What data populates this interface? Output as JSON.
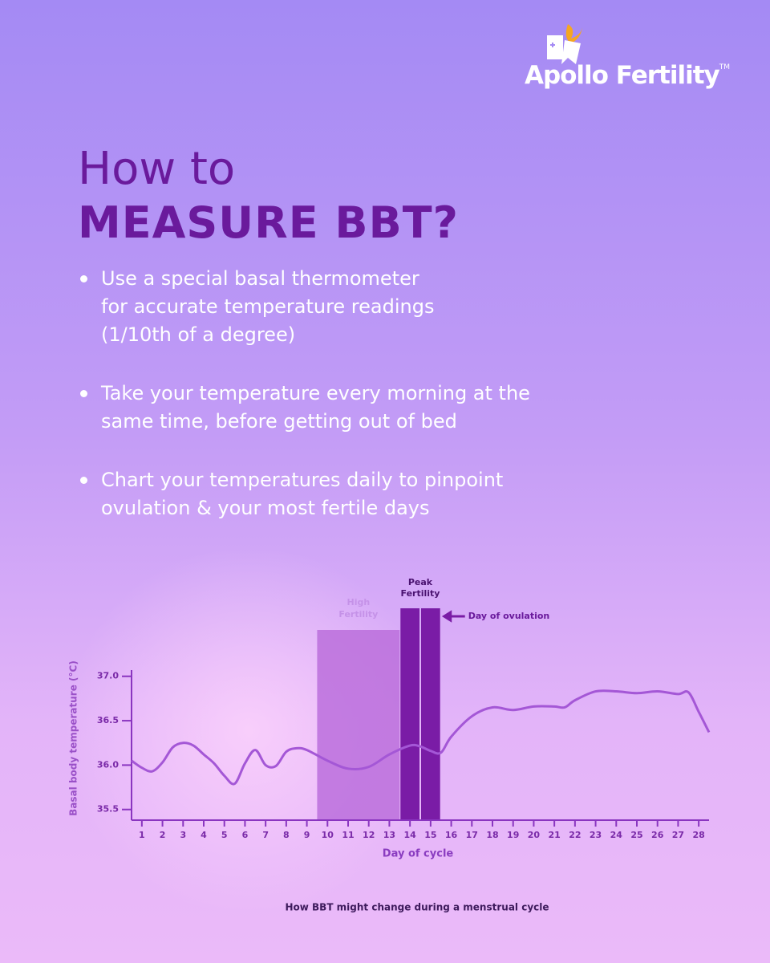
{
  "logo": {
    "name": "Apollo Fertility",
    "tm": "TM"
  },
  "header": {
    "title_line1": "How to",
    "title_line2": "MEASURE BBT?"
  },
  "bullets": [
    [
      "Use a special basal thermometer",
      "for accurate temperature readings",
      "(1/10th of a degree)"
    ],
    [
      "Take your temperature every morning at the",
      "same time, before getting out of bed"
    ],
    [
      "Chart your temperatures daily to pinpoint",
      "ovulation & your most fertile days"
    ]
  ],
  "chart_data": {
    "type": "line",
    "xlabel": "Day of cycle",
    "ylabel": "Basal body temperature (°C)",
    "caption": "How BBT might change during a menstrual cycle",
    "x": [
      0.5,
      1,
      1.5,
      2,
      2.5,
      3,
      3.5,
      4,
      4.5,
      5,
      5.5,
      6,
      6.5,
      7,
      7.5,
      8,
      8.5,
      9,
      10,
      11,
      12,
      13,
      14,
      14.5,
      15,
      15.5,
      16,
      17,
      18,
      19,
      20,
      21,
      21.5,
      22,
      23,
      24,
      25,
      26,
      27,
      27.5,
      28,
      28.5
    ],
    "series": [
      {
        "color": "#a457d6",
        "values": [
          36.05,
          35.97,
          35.93,
          36.03,
          36.2,
          36.25,
          36.22,
          36.12,
          36.02,
          35.88,
          35.79,
          36.02,
          36.17,
          36.0,
          35.99,
          36.15,
          36.19,
          36.17,
          36.05,
          35.96,
          35.98,
          36.12,
          36.22,
          36.21,
          36.16,
          36.14,
          36.32,
          36.55,
          36.65,
          36.62,
          36.66,
          36.66,
          36.65,
          36.73,
          36.83,
          36.83,
          36.81,
          36.83,
          36.8,
          36.82,
          36.6,
          36.37
        ]
      }
    ],
    "xlim": [
      0.5,
      28.5
    ],
    "xticks": [
      1,
      2,
      3,
      4,
      5,
      6,
      7,
      8,
      9,
      10,
      11,
      12,
      13,
      14,
      15,
      16,
      17,
      18,
      19,
      20,
      21,
      22,
      23,
      24,
      25,
      26,
      27,
      28
    ],
    "ylim": [
      35.38,
      37.07
    ],
    "yticks": [
      {
        "value": 35.5,
        "label": "35.5"
      },
      {
        "value": 36,
        "label": "36.0"
      },
      {
        "value": 36.5,
        "label": "36.5"
      },
      {
        "value": 37,
        "label": "37.0"
      }
    ],
    "high_fertility": {
      "label": [
        "High",
        "Fertility"
      ],
      "start": 9.5,
      "end": 13.5,
      "color": "#bb6fdc"
    },
    "peak_fertility": {
      "label": [
        "Peak",
        "Fertility"
      ],
      "days": [
        14,
        15
      ],
      "color": "#7a1ca6"
    },
    "ovulation": {
      "day": 15,
      "label": "Day of ovulation"
    }
  }
}
